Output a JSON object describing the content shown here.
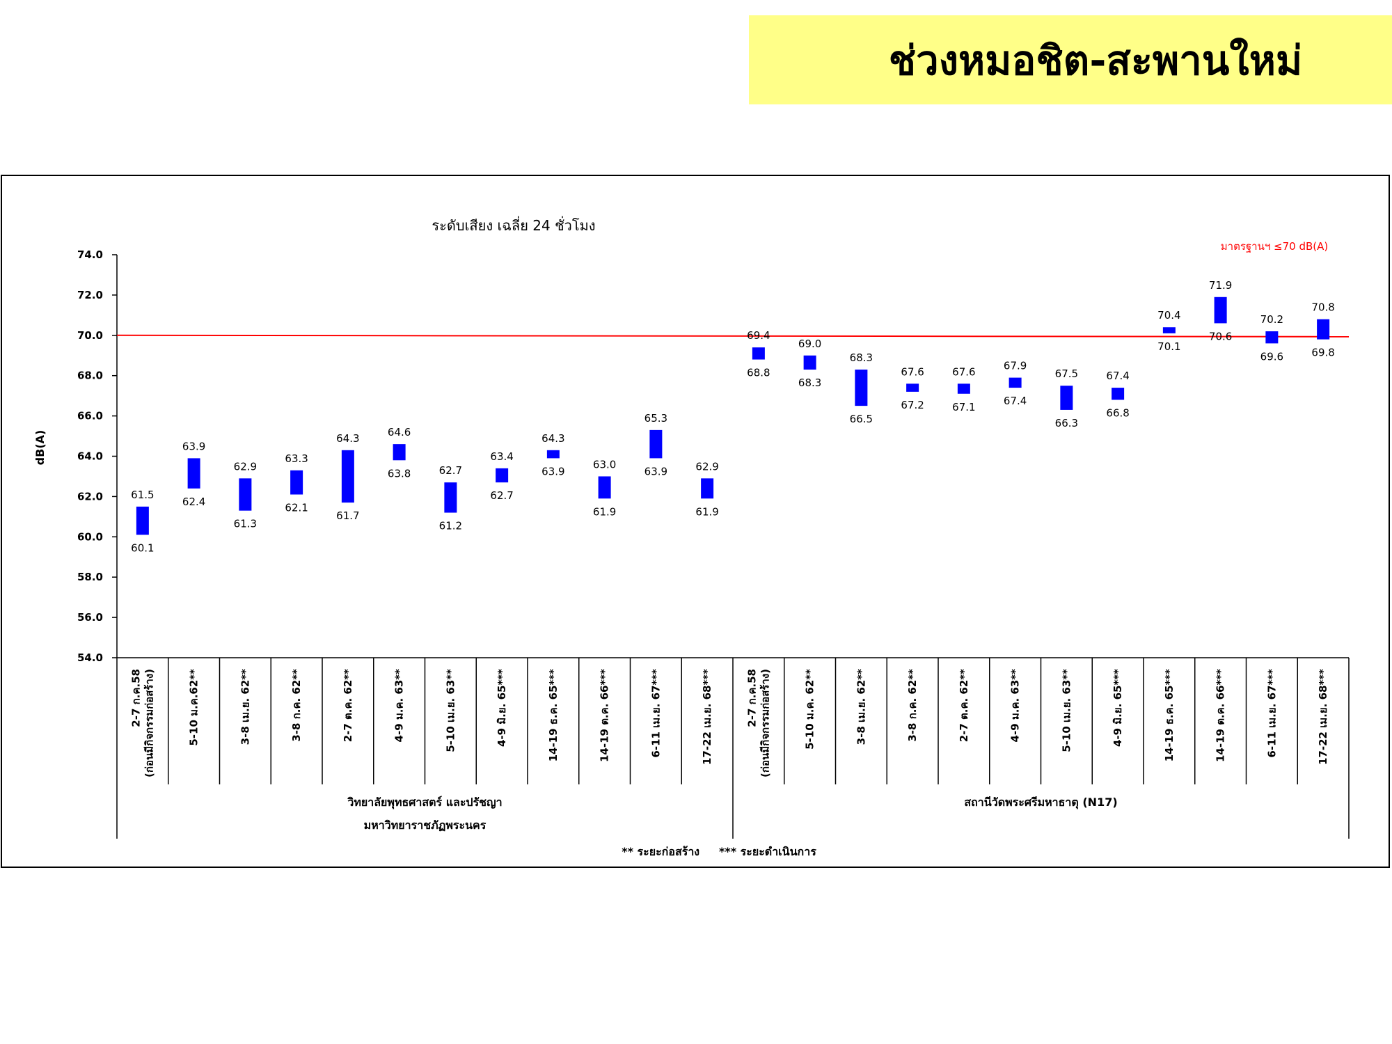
{
  "page_title": "ช่วงหมอชิต-สะพานใหม่",
  "colors": {
    "bar": "#0000ff",
    "standard_line": "#ff0000",
    "banner": "#ffff88",
    "standard_label": "#ff0000"
  },
  "chart_data": {
    "type": "bar",
    "subtype": "floating-range",
    "title": "ระดับเสียง เฉลี่ย 24 ชั่วโมง",
    "ylabel": "dB(A)",
    "xlabel": "",
    "ylim": [
      54.0,
      74.0
    ],
    "y_ticks": [
      "54.0",
      "56.0",
      "58.0",
      "60.0",
      "62.0",
      "64.0",
      "66.0",
      "68.0",
      "70.0",
      "72.0",
      "74.0"
    ],
    "grid": false,
    "standard": {
      "value": 70,
      "label": "มาตรฐานฯ ≤70 dB(A)",
      "position": "top-right"
    },
    "groups": [
      {
        "name_lines": [
          "วิทยาลัยพุทธศาสตร์ และปรัชญา",
          "มหาวิทยาราชภัฏพระนคร"
        ],
        "categories": [
          {
            "label": [
              "2-7 ก.ค.58",
              "(ก่อนมีกิจกรรมก่อสร้าง)"
            ],
            "low": 60.1,
            "high": 61.5
          },
          {
            "label": [
              "5-10 ม.ค.62**"
            ],
            "low": 62.4,
            "high": 63.9
          },
          {
            "label": [
              "3-8 เม.ย. 62**"
            ],
            "low": 61.3,
            "high": 62.9
          },
          {
            "label": [
              "3-8 ก.ค. 62**"
            ],
            "low": 62.1,
            "high": 63.3
          },
          {
            "label": [
              "2-7 ต.ค. 62**"
            ],
            "low": 61.7,
            "high": 64.3
          },
          {
            "label": [
              "4-9 ม.ค. 63**"
            ],
            "low": 63.8,
            "high": 64.6
          },
          {
            "label": [
              "5-10 เม.ย. 63**"
            ],
            "low": 61.2,
            "high": 62.7
          },
          {
            "label": [
              "4-9 มิ.ย. 65***"
            ],
            "low": 62.7,
            "high": 63.4
          },
          {
            "label": [
              "14-19 ธ.ค. 65***"
            ],
            "low": 63.9,
            "high": 64.3
          },
          {
            "label": [
              "14-19 ต.ค. 66***"
            ],
            "low": 61.9,
            "high": 63.0
          },
          {
            "label": [
              "6-11 เม.ย. 67***"
            ],
            "low": 63.9,
            "high": 65.3
          },
          {
            "label": [
              "17-22 เม.ย. 68***"
            ],
            "low": 61.9,
            "high": 62.9
          }
        ]
      },
      {
        "name_lines": [
          "สถานีวัดพระศรีมหาธาตุ (N17)"
        ],
        "categories": [
          {
            "label": [
              "2-7 ก.ค.58",
              "(ก่อนมีกิจกรรมก่อสร้าง)"
            ],
            "low": 68.8,
            "high": 69.4
          },
          {
            "label": [
              "5-10 ม.ค. 62**"
            ],
            "low": 68.3,
            "high": 69.0
          },
          {
            "label": [
              "3-8 เม.ย. 62**"
            ],
            "low": 66.5,
            "high": 68.3
          },
          {
            "label": [
              "3-8 ก.ค. 62**"
            ],
            "low": 67.2,
            "high": 67.6
          },
          {
            "label": [
              "2-7 ต.ค. 62**"
            ],
            "low": 67.1,
            "high": 67.6
          },
          {
            "label": [
              "4-9 ม.ค. 63**"
            ],
            "low": 67.4,
            "high": 67.9
          },
          {
            "label": [
              "5-10 เม.ย. 63**"
            ],
            "low": 66.3,
            "high": 67.5
          },
          {
            "label": [
              "4-9 มิ.ย. 65***"
            ],
            "low": 66.8,
            "high": 67.4
          },
          {
            "label": [
              "14-19 ธ.ค. 65***"
            ],
            "low": 70.1,
            "high": 70.4
          },
          {
            "label": [
              "14-19 ต.ค. 66***"
            ],
            "low": 70.6,
            "high": 71.9
          },
          {
            "label": [
              "6-11 เม.ย. 67***"
            ],
            "low": 69.6,
            "high": 70.2
          },
          {
            "label": [
              "17-22 เม.ย. 68***"
            ],
            "low": 69.8,
            "high": 70.8
          }
        ]
      }
    ],
    "footnote": "** ระยะก่อสร้าง     *** ระยะดำเนินการ"
  }
}
